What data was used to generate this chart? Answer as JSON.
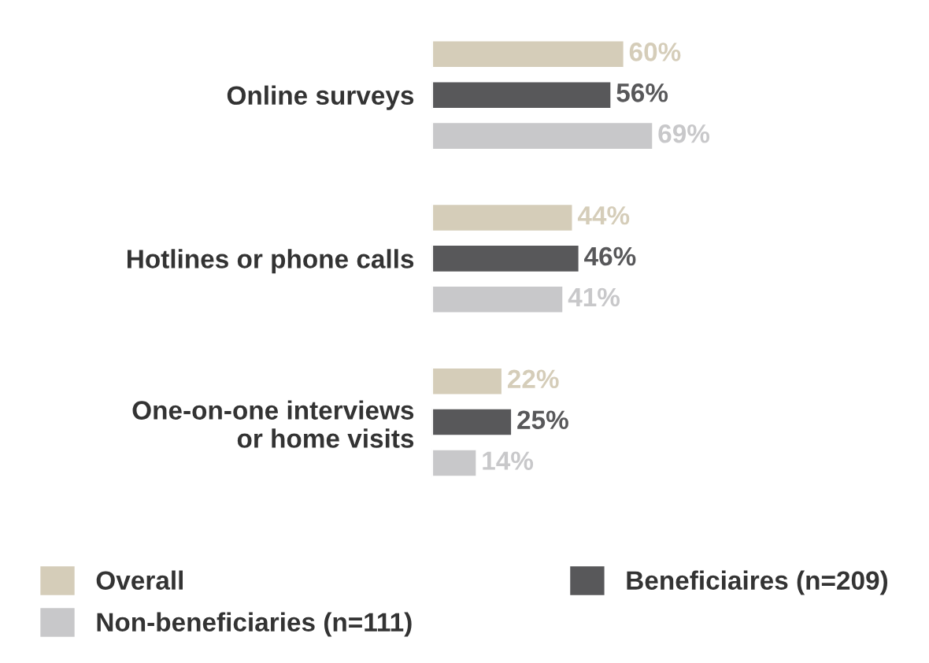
{
  "chart_data": {
    "type": "bar",
    "orientation": "horizontal",
    "categories": [
      "Online surveys",
      "Hotlines or phone calls",
      "One-on-one interviews\nor home visits"
    ],
    "series": [
      {
        "name": "Overall",
        "color": "#d5cdb9",
        "values": [
          60,
          44,
          22
        ],
        "value_labels": [
          "60%",
          "44%",
          "22%"
        ]
      },
      {
        "name": "Beneficiaires (n=209)",
        "color": "#58585a",
        "values": [
          56,
          46,
          25
        ],
        "value_labels": [
          "56%",
          "46%",
          "25%"
        ]
      },
      {
        "name": "Non-beneficiaries (n=111)",
        "color": "#c8c8ca",
        "values": [
          69,
          41,
          14
        ],
        "value_labels": [
          "69%",
          "41%",
          "14%"
        ]
      }
    ],
    "tick_labels": "y",
    "grid": false,
    "legend": "bottom"
  }
}
